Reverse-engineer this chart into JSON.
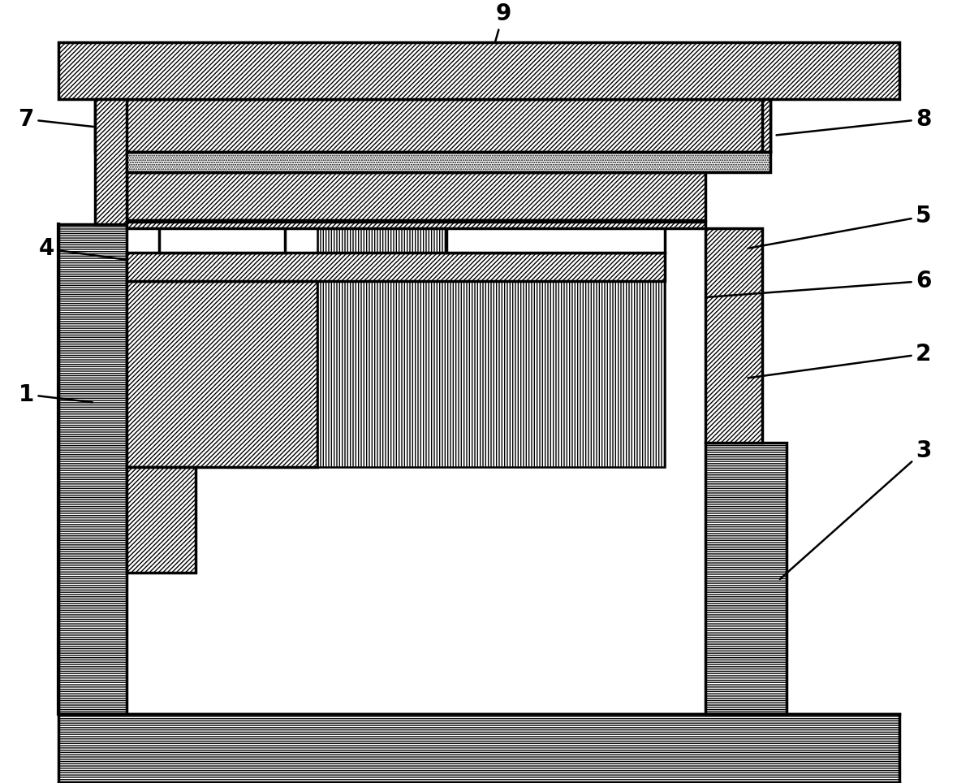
{
  "bg": "#ffffff",
  "lc": "#000000",
  "lw": 2.5,
  "fs": 20,
  "fw": "bold",
  "figw": 11.79,
  "figh": 9.64,
  "dpi": 100
}
